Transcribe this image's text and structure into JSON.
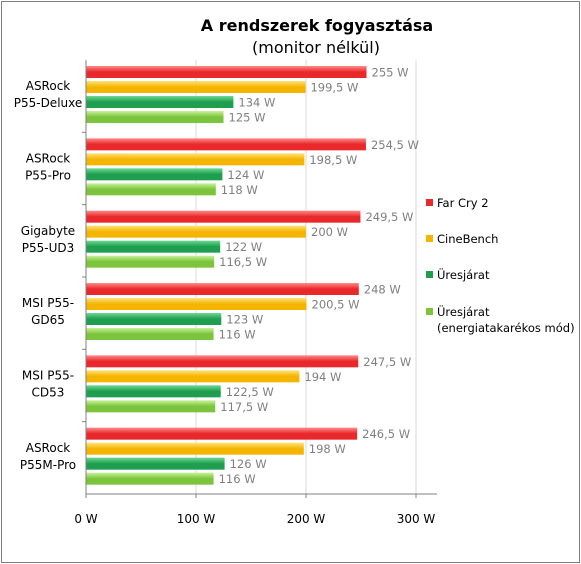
{
  "chart_data": {
    "type": "bar",
    "orientation": "horizontal",
    "title": "A rendszerek fogyasztása",
    "subtitle": "(monitor nélkül)",
    "categories": [
      [
        "ASRock",
        "P55-Deluxe"
      ],
      [
        "ASRock",
        "P55-Pro"
      ],
      [
        "Gigabyte",
        "P55-UD3"
      ],
      [
        "MSI P55-",
        "GD65"
      ],
      [
        "MSI P55-",
        "CD53"
      ],
      [
        "ASRock",
        "P55M-Pro"
      ]
    ],
    "series": [
      {
        "name": "Far Cry 2",
        "values": [
          255,
          254.5,
          249.5,
          248,
          247.5,
          246.5
        ],
        "labels": [
          "255 W",
          "254,5 W",
          "249,5 W",
          "248 W",
          "247,5 W",
          "246,5 W"
        ],
        "color": "#e8282a",
        "color_light": "#ff8a8a"
      },
      {
        "name": "CineBench",
        "values": [
          199.5,
          198.5,
          200,
          200.5,
          194,
          198
        ],
        "labels": [
          "199,5 W",
          "198,5 W",
          "200 W",
          "200,5 W",
          "194 W",
          "198 W"
        ],
        "color": "#f5b400",
        "color_light": "#ffe27a"
      },
      {
        "name": "Üresjárat",
        "values": [
          134,
          124,
          122,
          123,
          122.5,
          126
        ],
        "labels": [
          "134 W",
          "124 W",
          "122 W",
          "123 W",
          "122,5 W",
          "126 W"
        ],
        "color": "#1f9e50",
        "color_light": "#6cd98f"
      },
      {
        "name": [
          "Üresjárat",
          "(energiatakarékos mód)"
        ],
        "values": [
          125,
          118,
          116.5,
          116,
          117.5,
          116
        ],
        "labels": [
          "125 W",
          "118 W",
          "116,5 W",
          "116 W",
          "117,5 W",
          "116 W"
        ],
        "color": "#7cc43c",
        "color_light": "#c8f29a"
      }
    ],
    "xlim": [
      0,
      300
    ],
    "xticks": [
      "0 W",
      "100 W",
      "200 W",
      "300 W"
    ],
    "xtick_values": [
      0,
      100,
      200,
      300
    ],
    "grid": true,
    "legend": "right"
  }
}
